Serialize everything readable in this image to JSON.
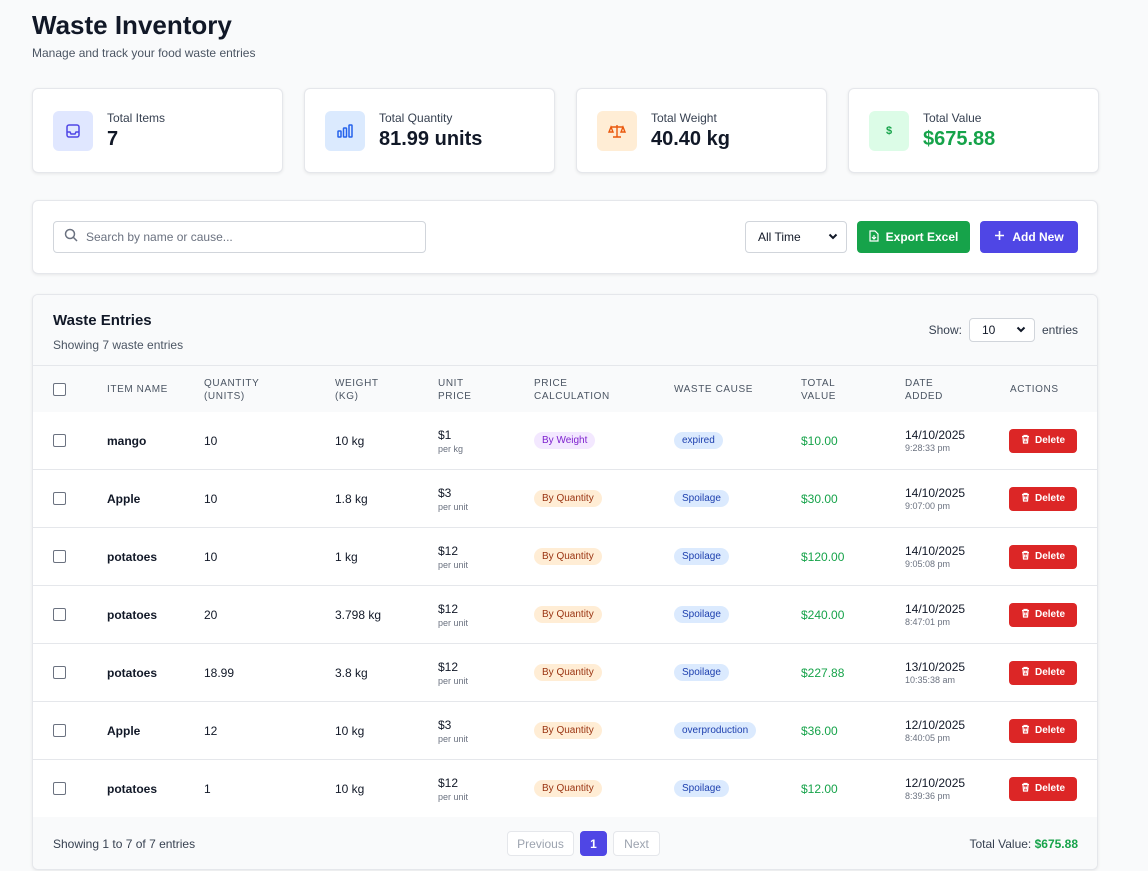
{
  "header": {
    "title": "Waste Inventory",
    "subtitle": "Manage and track your food waste entries"
  },
  "stats": [
    {
      "label": "Total Items",
      "value": "7",
      "icon": "inbox-icon",
      "color": "#e0e7ff"
    },
    {
      "label": "Total Quantity",
      "value": "81.99 units",
      "icon": "bar-chart-icon",
      "color": "#dbeafe"
    },
    {
      "label": "Total Weight",
      "value": "40.40 kg",
      "icon": "scale-icon",
      "color": "#ffedd5"
    },
    {
      "label": "Total Value",
      "value": "$675.88",
      "icon": "dollar-icon",
      "color": "#dcfce7"
    }
  ],
  "toolbar": {
    "search_placeholder": "Search by name or cause...",
    "time_filter": "All Time",
    "export_label": "Export Excel",
    "add_label": "Add New"
  },
  "table": {
    "title": "Waste Entries",
    "subtitle": "Showing 7 waste entries",
    "show_label": "Show:",
    "show_value": "10",
    "entries_label": "entries",
    "columns": [
      "ITEM NAME",
      "QUANTITY (UNITS)",
      "WEIGHT (KG)",
      "UNIT PRICE",
      "PRICE CALCULATION",
      "WASTE CAUSE",
      "TOTAL VALUE",
      "DATE ADDED",
      "ACTIONS"
    ],
    "delete_label": "Delete",
    "rows": [
      {
        "name": "mango",
        "quantity": "10",
        "weight": "10 kg",
        "price": "$1",
        "price_unit": "per kg",
        "calc": "By Weight",
        "cause": "expired",
        "total": "$10.00",
        "date": "14/10/2025",
        "time": "9:28:33 pm"
      },
      {
        "name": "Apple",
        "quantity": "10",
        "weight": "1.8 kg",
        "price": "$3",
        "price_unit": "per unit",
        "calc": "By Quantity",
        "cause": "Spoilage",
        "total": "$30.00",
        "date": "14/10/2025",
        "time": "9:07:00 pm"
      },
      {
        "name": "potatoes",
        "quantity": "10",
        "weight": "1 kg",
        "price": "$12",
        "price_unit": "per unit",
        "calc": "By Quantity",
        "cause": "Spoilage",
        "total": "$120.00",
        "date": "14/10/2025",
        "time": "9:05:08 pm"
      },
      {
        "name": "potatoes",
        "quantity": "20",
        "weight": "3.798 kg",
        "price": "$12",
        "price_unit": "per unit",
        "calc": "By Quantity",
        "cause": "Spoilage",
        "total": "$240.00",
        "date": "14/10/2025",
        "time": "8:47:01 pm"
      },
      {
        "name": "potatoes",
        "quantity": "18.99",
        "weight": "3.8 kg",
        "price": "$12",
        "price_unit": "per unit",
        "calc": "By Quantity",
        "cause": "Spoilage",
        "total": "$227.88",
        "date": "13/10/2025",
        "time": "10:35:38 am"
      },
      {
        "name": "Apple",
        "quantity": "12",
        "weight": "10 kg",
        "price": "$3",
        "price_unit": "per unit",
        "calc": "By Quantity",
        "cause": "overproduction",
        "total": "$36.00",
        "date": "12/10/2025",
        "time": "8:40:05 pm"
      },
      {
        "name": "potatoes",
        "quantity": "1",
        "weight": "10 kg",
        "price": "$12",
        "price_unit": "per unit",
        "calc": "By Quantity",
        "cause": "Spoilage",
        "total": "$12.00",
        "date": "12/10/2025",
        "time": "8:39:36 pm"
      }
    ]
  },
  "footer": {
    "info": "Showing 1 to 7 of 7 entries",
    "prev_label": "Previous",
    "page": "1",
    "next_label": "Next",
    "total_label": "Total Value:",
    "total_value": "$675.88"
  }
}
